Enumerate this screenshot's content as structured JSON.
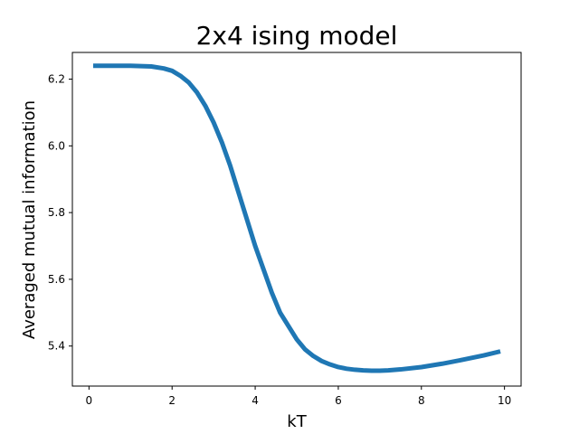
{
  "chart_data": {
    "type": "line",
    "title": "2x4 ising model",
    "xlabel": "kT",
    "ylabel": "Averaged mutual information",
    "xlim": [
      -0.4,
      10.4
    ],
    "ylim": [
      5.28,
      6.28
    ],
    "xticks": [
      0,
      2,
      4,
      6,
      8,
      10
    ],
    "xtick_labels": [
      "0",
      "2",
      "4",
      "6",
      "8",
      "10"
    ],
    "yticks": [
      5.4,
      5.6,
      5.8,
      6.0,
      6.2
    ],
    "ytick_labels": [
      "5.4",
      "5.6",
      "5.8",
      "6.0",
      "6.2"
    ],
    "grid": false,
    "series": [
      {
        "color": "#1f77b4",
        "x": [
          0.1,
          0.5,
          1.0,
          1.5,
          1.8,
          2.0,
          2.2,
          2.4,
          2.6,
          2.8,
          3.0,
          3.2,
          3.4,
          3.6,
          3.8,
          4.0,
          4.2,
          4.4,
          4.6,
          4.8,
          5.0,
          5.2,
          5.4,
          5.6,
          5.8,
          6.0,
          6.2,
          6.4,
          6.6,
          6.8,
          7.0,
          7.2,
          7.5,
          8.0,
          8.5,
          9.0,
          9.5,
          9.9
        ],
        "y": [
          6.24,
          6.24,
          6.24,
          6.238,
          6.232,
          6.225,
          6.21,
          6.19,
          6.16,
          6.12,
          6.07,
          6.01,
          5.94,
          5.86,
          5.78,
          5.7,
          5.63,
          5.56,
          5.5,
          5.46,
          5.42,
          5.39,
          5.37,
          5.355,
          5.345,
          5.337,
          5.332,
          5.329,
          5.327,
          5.326,
          5.326,
          5.327,
          5.33,
          5.337,
          5.347,
          5.359,
          5.372,
          5.384
        ]
      }
    ]
  }
}
